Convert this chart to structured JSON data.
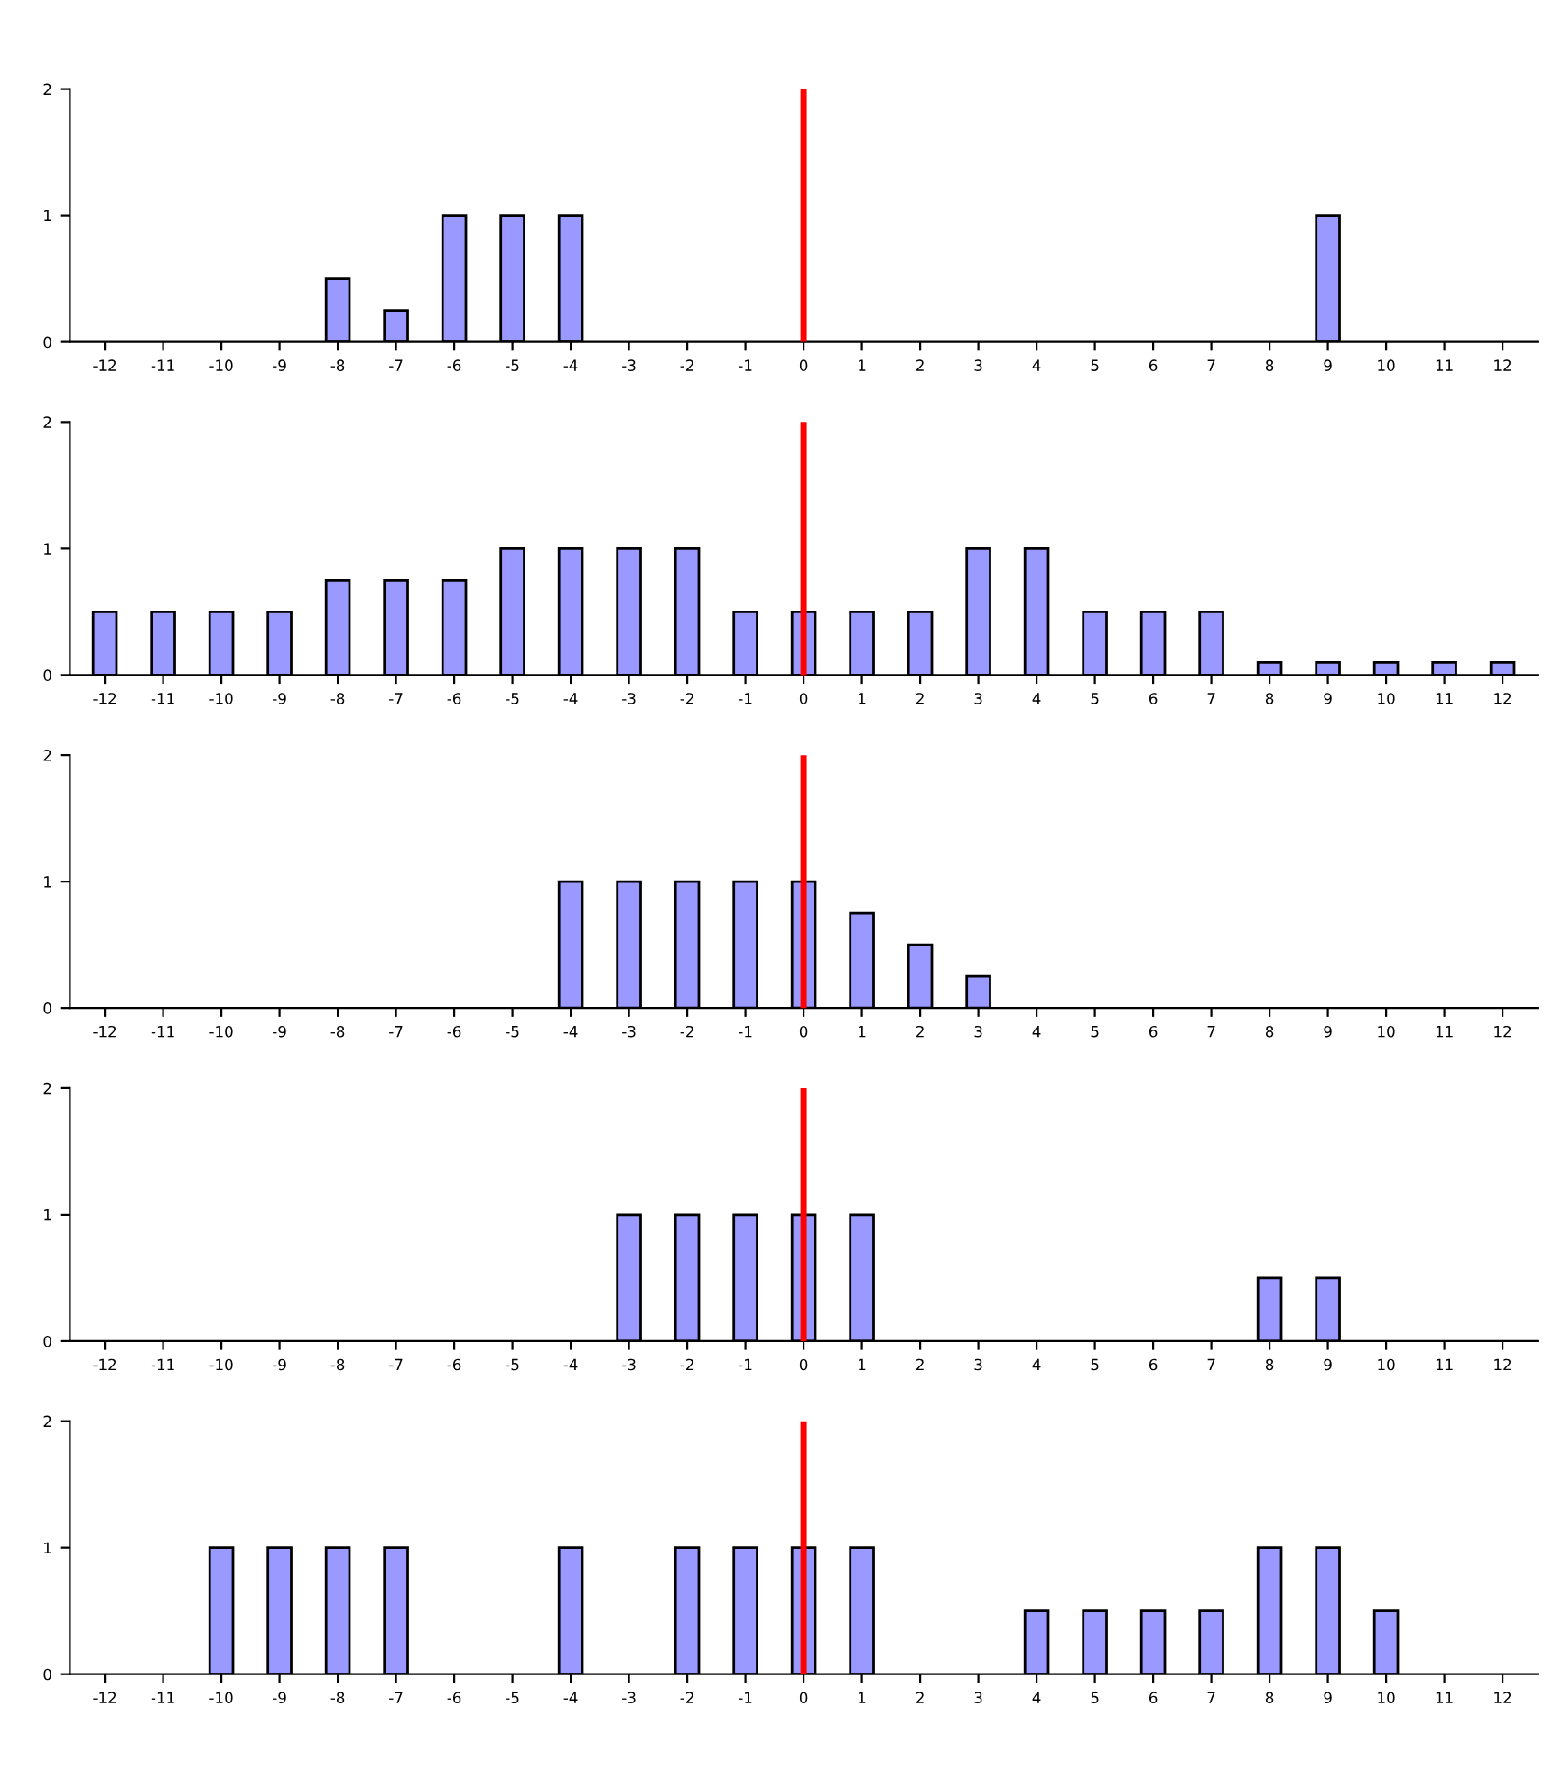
{
  "chart_data": [
    {
      "type": "bar",
      "categories": [
        "-12",
        "-11",
        "-10",
        "-9",
        "-8",
        "-7",
        "-6",
        "-5",
        "-4",
        "-3",
        "-2",
        "-1",
        "0",
        "1",
        "2",
        "3",
        "4",
        "5",
        "6",
        "7",
        "8",
        "9",
        "10",
        "11",
        "12"
      ],
      "values": [
        0,
        0,
        0,
        0,
        0.5,
        0.25,
        1,
        1,
        1,
        0,
        0,
        0,
        0,
        0,
        0,
        0,
        0,
        0,
        0,
        0,
        0,
        1,
        0,
        0,
        0
      ],
      "color": "#9999ff",
      "ylim": [
        0,
        2
      ],
      "yticks": [
        0,
        1,
        2
      ],
      "grid": false,
      "ref_lines": [
        {
          "axis": "x",
          "value": "0",
          "color": "#ff0000"
        }
      ]
    },
    {
      "type": "bar",
      "categories": [
        "-12",
        "-11",
        "-10",
        "-9",
        "-8",
        "-7",
        "-6",
        "-5",
        "-4",
        "-3",
        "-2",
        "-1",
        "0",
        "1",
        "2",
        "3",
        "4",
        "5",
        "6",
        "7",
        "8",
        "9",
        "10",
        "11",
        "12"
      ],
      "values": [
        0.5,
        0.5,
        0.5,
        0.5,
        0.75,
        0.75,
        0.75,
        1,
        1,
        1,
        1,
        0.5,
        0.5,
        0.5,
        0.5,
        1,
        1,
        0.5,
        0.5,
        0.5,
        0.1,
        0.1,
        0.1,
        0.1,
        0.1
      ],
      "color": "#9999ff",
      "ylim": [
        0,
        2
      ],
      "yticks": [
        0,
        1,
        2
      ],
      "grid": false,
      "ref_lines": [
        {
          "axis": "x",
          "value": "0",
          "color": "#ff0000"
        }
      ]
    },
    {
      "type": "bar",
      "categories": [
        "-12",
        "-11",
        "-10",
        "-9",
        "-8",
        "-7",
        "-6",
        "-5",
        "-4",
        "-3",
        "-2",
        "-1",
        "0",
        "1",
        "2",
        "3",
        "4",
        "5",
        "6",
        "7",
        "8",
        "9",
        "10",
        "11",
        "12"
      ],
      "values": [
        0,
        0,
        0,
        0,
        0,
        0,
        0,
        0,
        1,
        1,
        1,
        1,
        1,
        0.75,
        0.5,
        0.25,
        0,
        0,
        0,
        0,
        0,
        0,
        0,
        0,
        0
      ],
      "color": "#9999ff",
      "ylim": [
        0,
        2
      ],
      "yticks": [
        0,
        1,
        2
      ],
      "grid": false,
      "ref_lines": [
        {
          "axis": "x",
          "value": "0",
          "color": "#ff0000"
        }
      ]
    },
    {
      "type": "bar",
      "categories": [
        "-12",
        "-11",
        "-10",
        "-9",
        "-8",
        "-7",
        "-6",
        "-5",
        "-4",
        "-3",
        "-2",
        "-1",
        "0",
        "1",
        "2",
        "3",
        "4",
        "5",
        "6",
        "7",
        "8",
        "9",
        "10",
        "11",
        "12"
      ],
      "values": [
        0,
        0,
        0,
        0,
        0,
        0,
        0,
        0,
        0,
        1,
        1,
        1,
        1,
        1,
        0,
        0,
        0,
        0,
        0,
        0,
        0.5,
        0.5,
        0,
        0,
        0
      ],
      "color": "#9999ff",
      "ylim": [
        0,
        2
      ],
      "yticks": [
        0,
        1,
        2
      ],
      "grid": false,
      "ref_lines": [
        {
          "axis": "x",
          "value": "0",
          "color": "#ff0000"
        }
      ]
    },
    {
      "type": "bar",
      "categories": [
        "-12",
        "-11",
        "-10",
        "-9",
        "-8",
        "-7",
        "-6",
        "-5",
        "-4",
        "-3",
        "-2",
        "-1",
        "0",
        "1",
        "2",
        "3",
        "4",
        "5",
        "6",
        "7",
        "8",
        "9",
        "10",
        "11",
        "12"
      ],
      "values": [
        0,
        0,
        1,
        1,
        1,
        1,
        0,
        0,
        1,
        0,
        1,
        1,
        1,
        1,
        0,
        0,
        0.5,
        0.5,
        0.5,
        0.5,
        1,
        1,
        0.5,
        0,
        0
      ],
      "color": "#9999ff",
      "ylim": [
        0,
        2
      ],
      "yticks": [
        0,
        1,
        2
      ],
      "grid": false,
      "ref_lines": [
        {
          "axis": "x",
          "value": "0",
          "color": "#ff0000"
        }
      ]
    }
  ]
}
